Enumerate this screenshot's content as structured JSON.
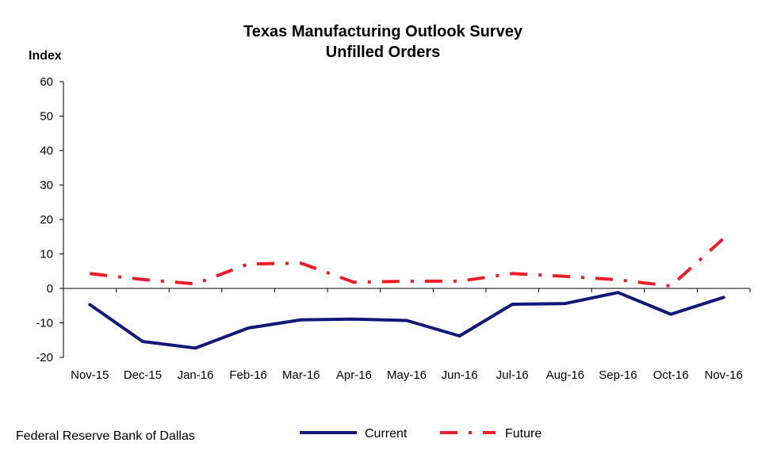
{
  "chart_data": {
    "type": "line",
    "title": "Texas Manufacturing Outlook Survey",
    "subtitle": "Unfilled Orders",
    "ylabel": "Index",
    "xlabel": "",
    "ylim": [
      -20,
      60
    ],
    "yticks": [
      60,
      50,
      40,
      30,
      20,
      10,
      0,
      -10,
      -20
    ],
    "categories": [
      "Nov-15",
      "Dec-15",
      "Jan-16",
      "Feb-16",
      "Mar-16",
      "Apr-16",
      "May-16",
      "Jun-16",
      "Jul-16",
      "Aug-16",
      "Sep-16",
      "Oct-16",
      "Nov-16"
    ],
    "series": [
      {
        "name": "Current",
        "color": "#0f1a78",
        "style": "solid",
        "values": [
          -4.7,
          -15.4,
          -17.3,
          -11.5,
          -9.1,
          -8.9,
          -9.3,
          -13.8,
          -4.6,
          -4.4,
          -1.2,
          -7.5,
          -2.6
        ]
      },
      {
        "name": "Future",
        "color": "#ee1c25",
        "style": "dash-dot",
        "values": [
          4.3,
          2.6,
          1.3,
          7.1,
          7.3,
          1.8,
          2.1,
          2.1,
          4.3,
          3.5,
          2.5,
          0.7,
          14.5
        ]
      }
    ],
    "grid": false,
    "legend_position": "bottom"
  },
  "source": "Federal Reserve Bank of Dallas"
}
